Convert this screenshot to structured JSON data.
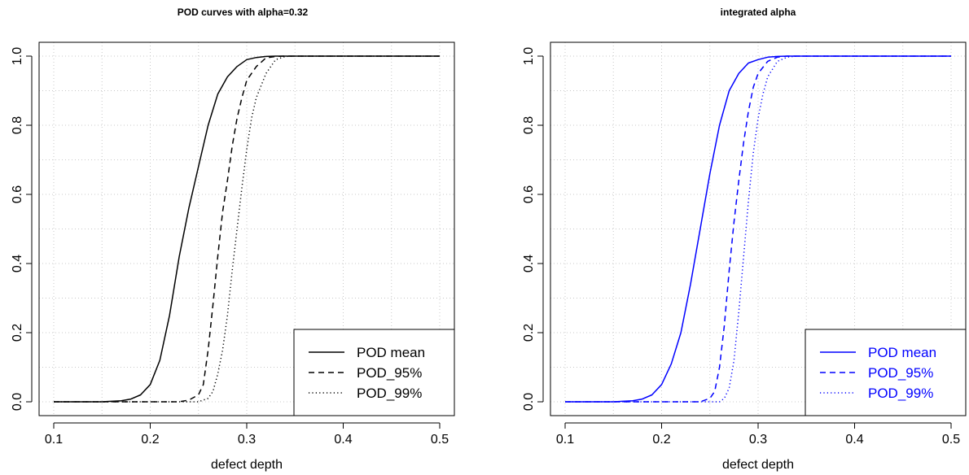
{
  "chart_data": [
    {
      "type": "line",
      "title": "POD curves with alpha=0.32",
      "xlabel": "defect depth",
      "ylabel": "",
      "xlim": [
        0.1,
        0.5
      ],
      "ylim": [
        0.0,
        1.0
      ],
      "xticks": [
        "0.1",
        "0.2",
        "0.3",
        "0.4",
        "0.5"
      ],
      "yticks": [
        "0.0",
        "0.2",
        "0.4",
        "0.6",
        "0.8",
        "1.0"
      ],
      "grid": true,
      "legend_position": "bottom-right",
      "color": "#000000",
      "series": [
        {
          "name": "POD mean",
          "dash": "solid",
          "x": [
            0.1,
            0.15,
            0.17,
            0.18,
            0.19,
            0.2,
            0.21,
            0.22,
            0.23,
            0.24,
            0.25,
            0.26,
            0.27,
            0.28,
            0.29,
            0.3,
            0.31,
            0.32,
            0.33,
            0.35,
            0.5
          ],
          "y": [
            0.0,
            0.0,
            0.003,
            0.008,
            0.02,
            0.05,
            0.12,
            0.25,
            0.42,
            0.56,
            0.68,
            0.8,
            0.89,
            0.94,
            0.97,
            0.99,
            0.996,
            0.999,
            1.0,
            1.0,
            1.0
          ]
        },
        {
          "name": "POD_95%",
          "dash": "dashed",
          "x": [
            0.1,
            0.23,
            0.24,
            0.25,
            0.255,
            0.26,
            0.265,
            0.27,
            0.275,
            0.28,
            0.285,
            0.29,
            0.295,
            0.3,
            0.31,
            0.32,
            0.33,
            0.34,
            0.5
          ],
          "y": [
            0.0,
            0.0,
            0.005,
            0.02,
            0.05,
            0.15,
            0.28,
            0.42,
            0.55,
            0.64,
            0.74,
            0.82,
            0.88,
            0.93,
            0.97,
            0.995,
            0.999,
            1.0,
            1.0
          ]
        },
        {
          "name": "POD_99%",
          "dash": "dotted",
          "x": [
            0.1,
            0.25,
            0.26,
            0.265,
            0.27,
            0.275,
            0.28,
            0.285,
            0.29,
            0.295,
            0.3,
            0.305,
            0.31,
            0.32,
            0.33,
            0.34,
            0.35,
            0.5
          ],
          "y": [
            0.0,
            0.0,
            0.01,
            0.03,
            0.08,
            0.15,
            0.25,
            0.38,
            0.5,
            0.62,
            0.73,
            0.82,
            0.88,
            0.95,
            0.99,
            0.999,
            1.0,
            1.0
          ]
        }
      ]
    },
    {
      "type": "line",
      "title": "integrated alpha",
      "xlabel": "defect depth",
      "ylabel": "",
      "xlim": [
        0.1,
        0.5
      ],
      "ylim": [
        0.0,
        1.0
      ],
      "xticks": [
        "0.1",
        "0.2",
        "0.3",
        "0.4",
        "0.5"
      ],
      "yticks": [
        "0.0",
        "0.2",
        "0.4",
        "0.6",
        "0.8",
        "1.0"
      ],
      "grid": true,
      "legend_position": "bottom-right",
      "color": "#0000ff",
      "series": [
        {
          "name": "POD mean",
          "dash": "solid",
          "x": [
            0.1,
            0.15,
            0.17,
            0.18,
            0.19,
            0.2,
            0.21,
            0.22,
            0.23,
            0.24,
            0.25,
            0.26,
            0.27,
            0.28,
            0.29,
            0.3,
            0.31,
            0.32,
            0.33,
            0.35,
            0.5
          ],
          "y": [
            0.0,
            0.0,
            0.003,
            0.008,
            0.02,
            0.05,
            0.11,
            0.2,
            0.34,
            0.5,
            0.66,
            0.8,
            0.9,
            0.95,
            0.98,
            0.99,
            0.997,
            0.999,
            1.0,
            1.0,
            1.0
          ]
        },
        {
          "name": "POD_95%",
          "dash": "dashed",
          "x": [
            0.1,
            0.24,
            0.25,
            0.255,
            0.26,
            0.265,
            0.27,
            0.275,
            0.28,
            0.285,
            0.29,
            0.295,
            0.3,
            0.31,
            0.32,
            0.33,
            0.34,
            0.5
          ],
          "y": [
            0.0,
            0.0,
            0.01,
            0.03,
            0.1,
            0.22,
            0.38,
            0.52,
            0.64,
            0.75,
            0.84,
            0.91,
            0.95,
            0.985,
            0.997,
            1.0,
            1.0,
            1.0
          ]
        },
        {
          "name": "POD_99%",
          "dash": "dotted",
          "x": [
            0.1,
            0.26,
            0.265,
            0.27,
            0.275,
            0.28,
            0.285,
            0.29,
            0.295,
            0.3,
            0.305,
            0.31,
            0.32,
            0.33,
            0.34,
            0.35,
            0.5
          ],
          "y": [
            0.0,
            0.0,
            0.01,
            0.04,
            0.12,
            0.26,
            0.42,
            0.58,
            0.72,
            0.82,
            0.89,
            0.94,
            0.985,
            0.997,
            1.0,
            1.0,
            1.0
          ]
        }
      ]
    }
  ]
}
